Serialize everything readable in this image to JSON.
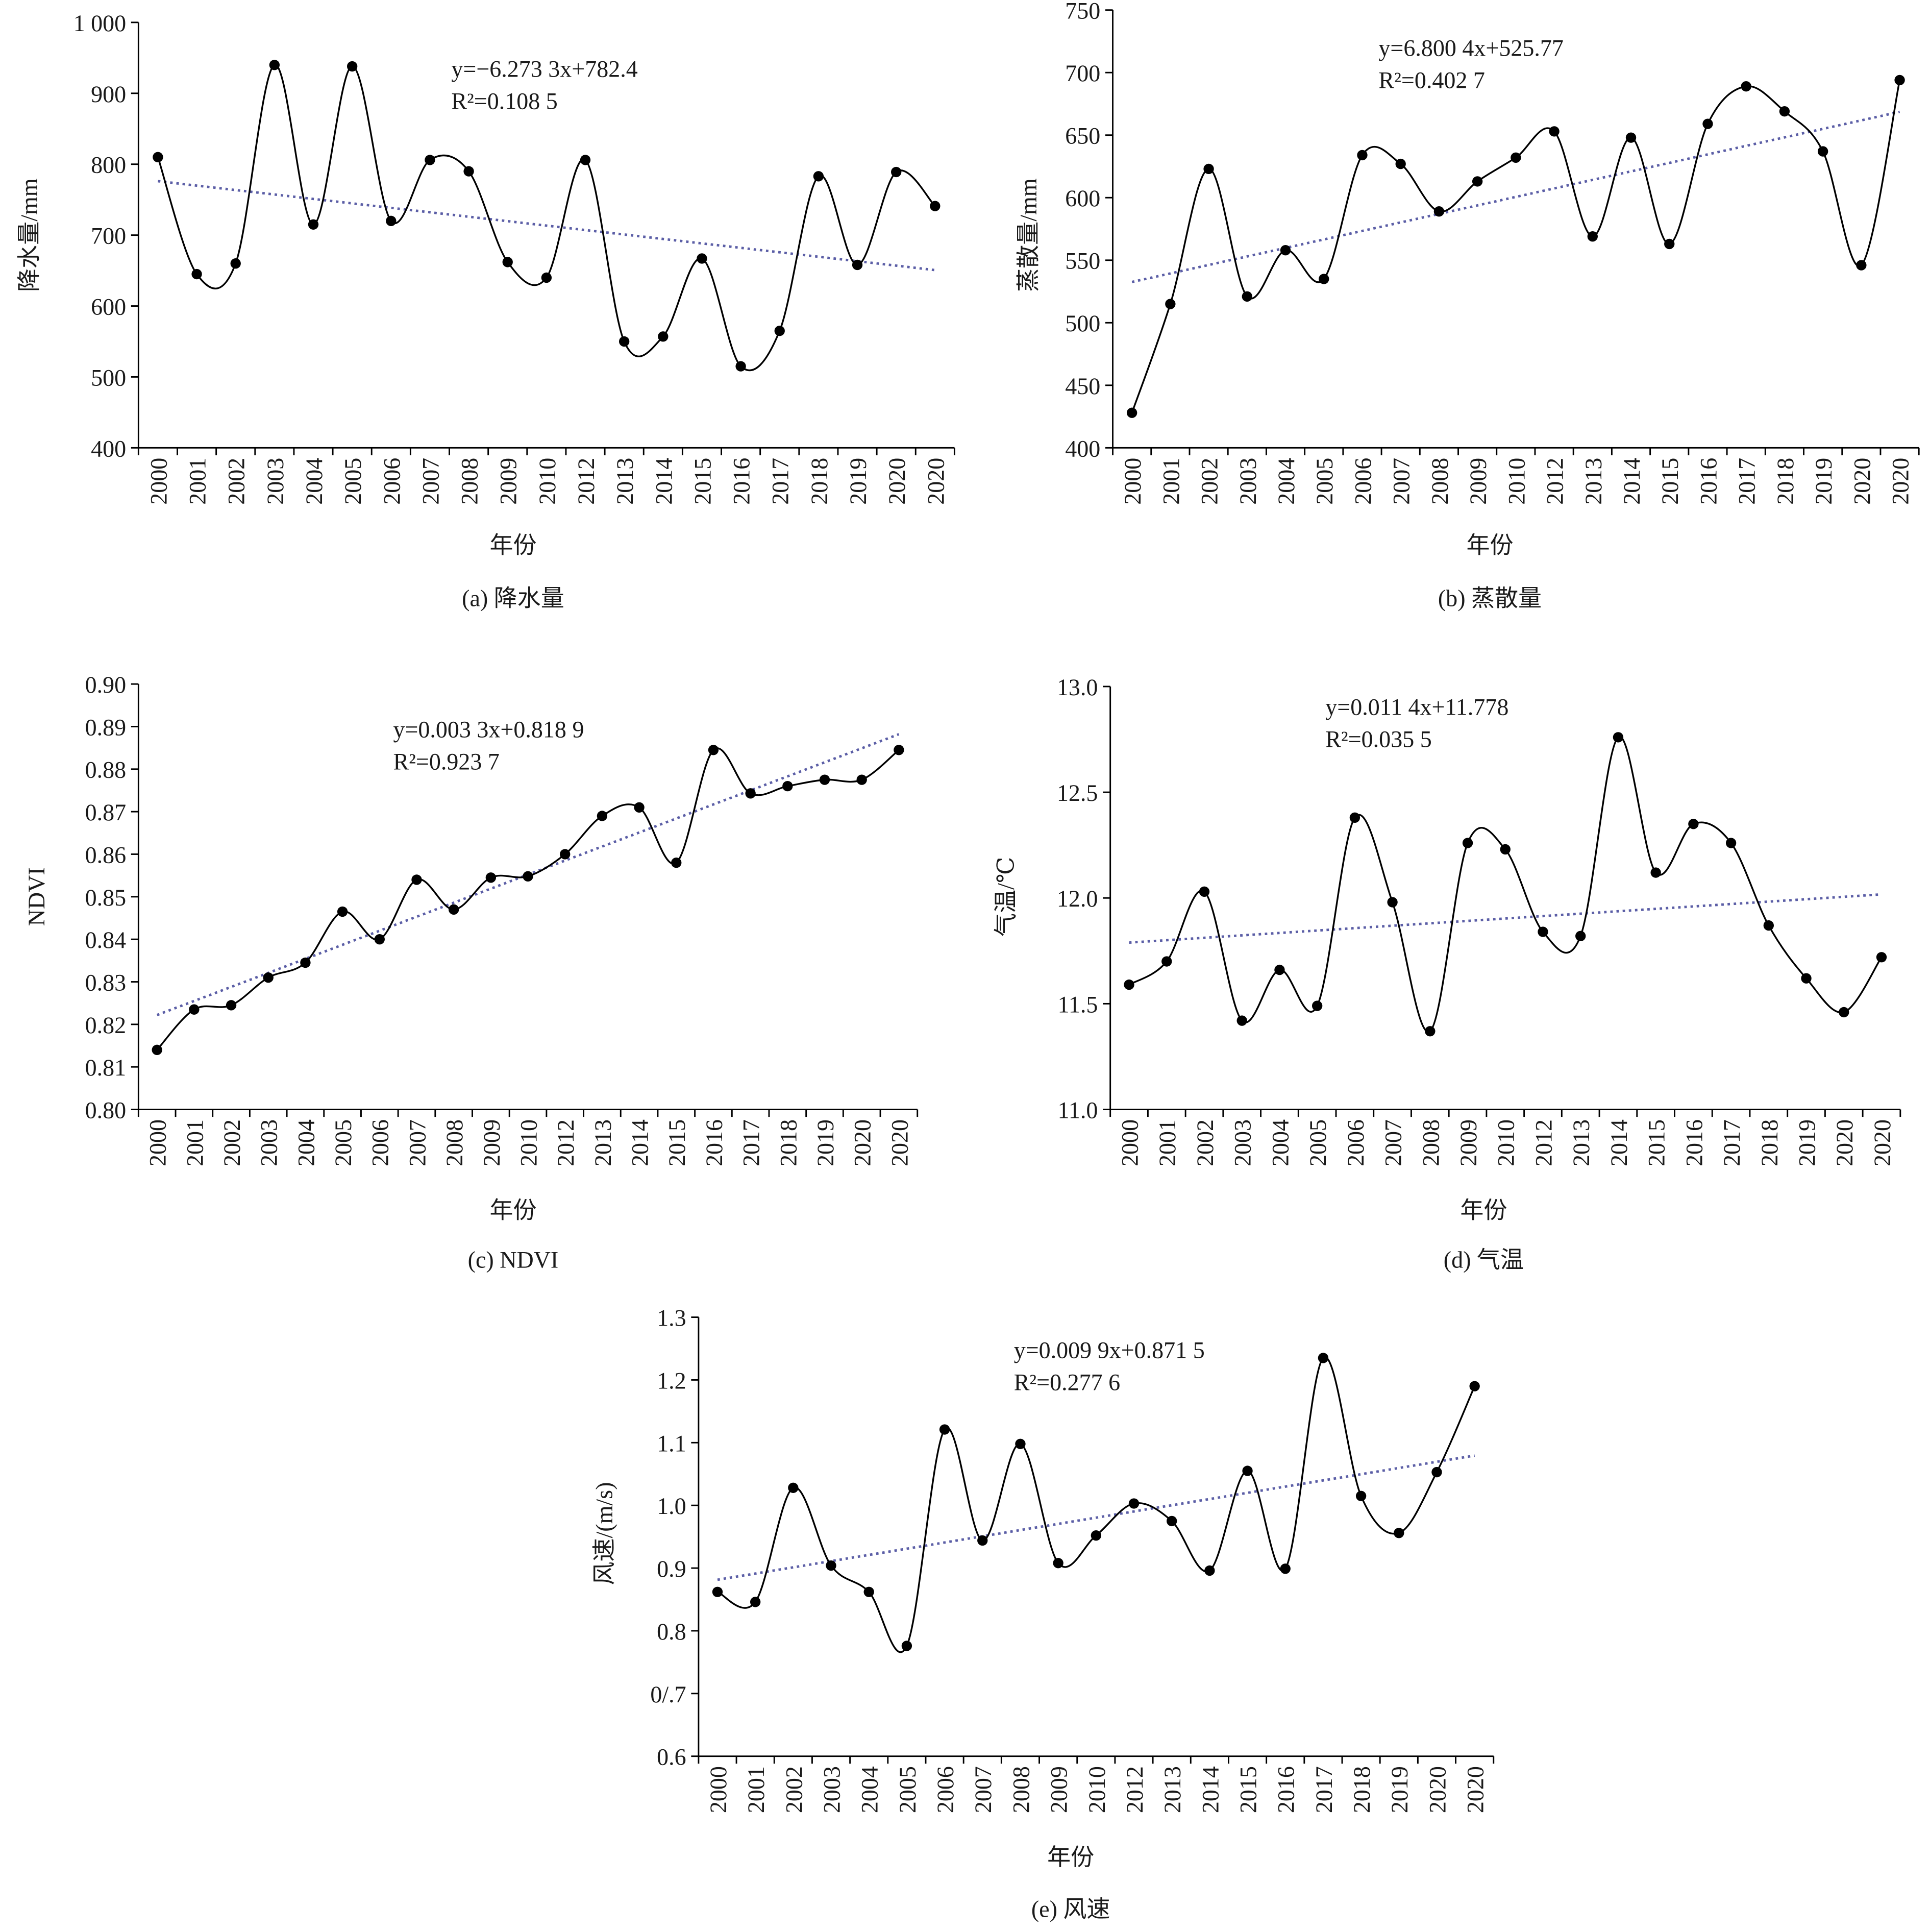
{
  "chart_data": [
    {
      "type": "line",
      "equation": "y=−6.273 3x+782.4",
      "r2": "R²=0.108 5",
      "y_label": "降水量/mm",
      "x_label": "年份",
      "caption": "(a) 降水量",
      "categories": [
        "2000",
        "2001",
        "2002",
        "2003",
        "2004",
        "2005",
        "2006",
        "2007",
        "2008",
        "2009",
        "2010",
        "2012",
        "2013",
        "2014",
        "2015",
        "2016",
        "2017",
        "2018",
        "2019",
        "2020",
        "2020"
      ],
      "values": [
        810,
        645,
        660,
        940,
        715,
        938,
        720,
        806,
        790,
        662,
        640,
        806,
        550,
        557,
        667,
        515,
        565,
        783,
        658,
        789,
        741
      ],
      "trend": [
        776.1,
        650.7
      ],
      "color": "#000000",
      "trend_color": "#5b5ea6",
      "ylim": [
        400,
        1000
      ],
      "yticks": [
        400,
        500,
        600,
        700,
        800,
        900,
        {
          "value": 1000,
          "label": "1 000"
        }
      ]
    },
    {
      "type": "line",
      "equation": "y=6.800 4x+525.77",
      "r2": "R²=0.402 7",
      "y_label": "蒸散量/mm",
      "x_label": "年份",
      "caption": "(b) 蒸散量",
      "categories": [
        "2000",
        "2001",
        "2002",
        "2003",
        "2004",
        "2005",
        "2006",
        "2007",
        "2008",
        "2009",
        "2010",
        "2012",
        "2013",
        "2014",
        "2015",
        "2016",
        "2017",
        "2018",
        "2019",
        "2020",
        "2020"
      ],
      "values": [
        428,
        515,
        623,
        521,
        558,
        535,
        634,
        627,
        589,
        613,
        632,
        653,
        569,
        648,
        563,
        659,
        689,
        669,
        637,
        546,
        694
      ],
      "trend": [
        532.6,
        668.6
      ],
      "color": "#000000",
      "trend_color": "#5b5ea6",
      "ylim": [
        400,
        750
      ],
      "yticks": [
        400,
        450,
        500,
        550,
        600,
        650,
        700,
        750
      ]
    },
    {
      "type": "line",
      "equation": "y=0.003 3x+0.818 9",
      "r2": "R²=0.923 7",
      "y_label": "NDVI",
      "x_label": "年份",
      "caption": "(c) NDVI",
      "categories": [
        "2000",
        "2001",
        "2002",
        "2003",
        "2004",
        "2005",
        "2006",
        "2007",
        "2008",
        "2009",
        "2010",
        "2012",
        "2013",
        "2014",
        "2015",
        "2016",
        "2017",
        "2018",
        "2019",
        "2020",
        "2020"
      ],
      "values": [
        0.814,
        0.8235,
        0.8245,
        0.831,
        0.8345,
        0.8465,
        0.84,
        0.854,
        0.847,
        0.8545,
        0.8548,
        0.86,
        0.869,
        0.871,
        0.858,
        0.8845,
        0.8743,
        0.876,
        0.8775,
        0.8775,
        0.8845
      ],
      "trend": [
        0.8222,
        0.8882
      ],
      "color": "#000000",
      "trend_color": "#5b5ea6",
      "ylim": [
        0.8,
        0.9
      ],
      "yticks": [
        {
          "value": 0.8,
          "label": "0.80"
        },
        0.81,
        0.82,
        0.83,
        0.84,
        0.85,
        0.86,
        0.87,
        0.88,
        0.89,
        {
          "value": 0.9,
          "label": "0.90"
        }
      ]
    },
    {
      "type": "line",
      "equation": "y=0.011 4x+11.778",
      "r2": "R²=0.035 5",
      "y_label": "气温/℃",
      "x_label": "年份",
      "caption": "(d) 气温",
      "categories": [
        "2000",
        "2001",
        "2002",
        "2003",
        "2004",
        "2005",
        "2006",
        "2007",
        "2008",
        "2009",
        "2010",
        "2012",
        "2013",
        "2014",
        "2015",
        "2016",
        "2017",
        "2018",
        "2019",
        "2020",
        "2020"
      ],
      "values": [
        11.59,
        11.7,
        12.03,
        11.42,
        11.66,
        11.49,
        12.38,
        11.98,
        11.37,
        12.26,
        12.23,
        11.84,
        11.82,
        12.76,
        12.12,
        12.35,
        12.26,
        11.87,
        11.62,
        11.46,
        11.72
      ],
      "trend": [
        11.789,
        12.017
      ],
      "color": "#000000",
      "trend_color": "#5b5ea6",
      "ylim": [
        11,
        13
      ],
      "yticks": [
        {
          "value": 11,
          "label": "11.0"
        },
        11.5,
        {
          "value": 12,
          "label": "12.0"
        },
        12.5,
        {
          "value": 13,
          "label": "13.0"
        }
      ]
    },
    {
      "type": "line",
      "equation": "y=0.009 9x+0.871 5",
      "r2": "R²=0.277 6",
      "y_label": "风速/(m/s)",
      "x_label": "年份",
      "caption": "(e) 风速",
      "categories": [
        "2000",
        "2001",
        "2002",
        "2003",
        "2004",
        "2005",
        "2006",
        "2007",
        "2008",
        "2009",
        "2010",
        "2012",
        "2013",
        "2014",
        "2015",
        "2016",
        "2017",
        "2018",
        "2019",
        "2020",
        "2020"
      ],
      "values": [
        0.862,
        0.846,
        1.028,
        0.904,
        0.862,
        0.776,
        1.121,
        0.944,
        1.098,
        0.908,
        0.952,
        1.003,
        0.975,
        0.896,
        1.055,
        0.899,
        1.235,
        1.015,
        0.956,
        1.053,
        1.19
      ],
      "trend": [
        0.8814,
        1.0794
      ],
      "color": "#000000",
      "trend_color": "#5b5ea6",
      "ylim": [
        0.6,
        1.3
      ],
      "yticks": [
        0.6,
        {
          "value": 0.7,
          "label": "0/.7"
        },
        0.8,
        0.9,
        {
          "value": 1,
          "label": "1.0"
        },
        1.1,
        1.2,
        1.3
      ]
    }
  ]
}
